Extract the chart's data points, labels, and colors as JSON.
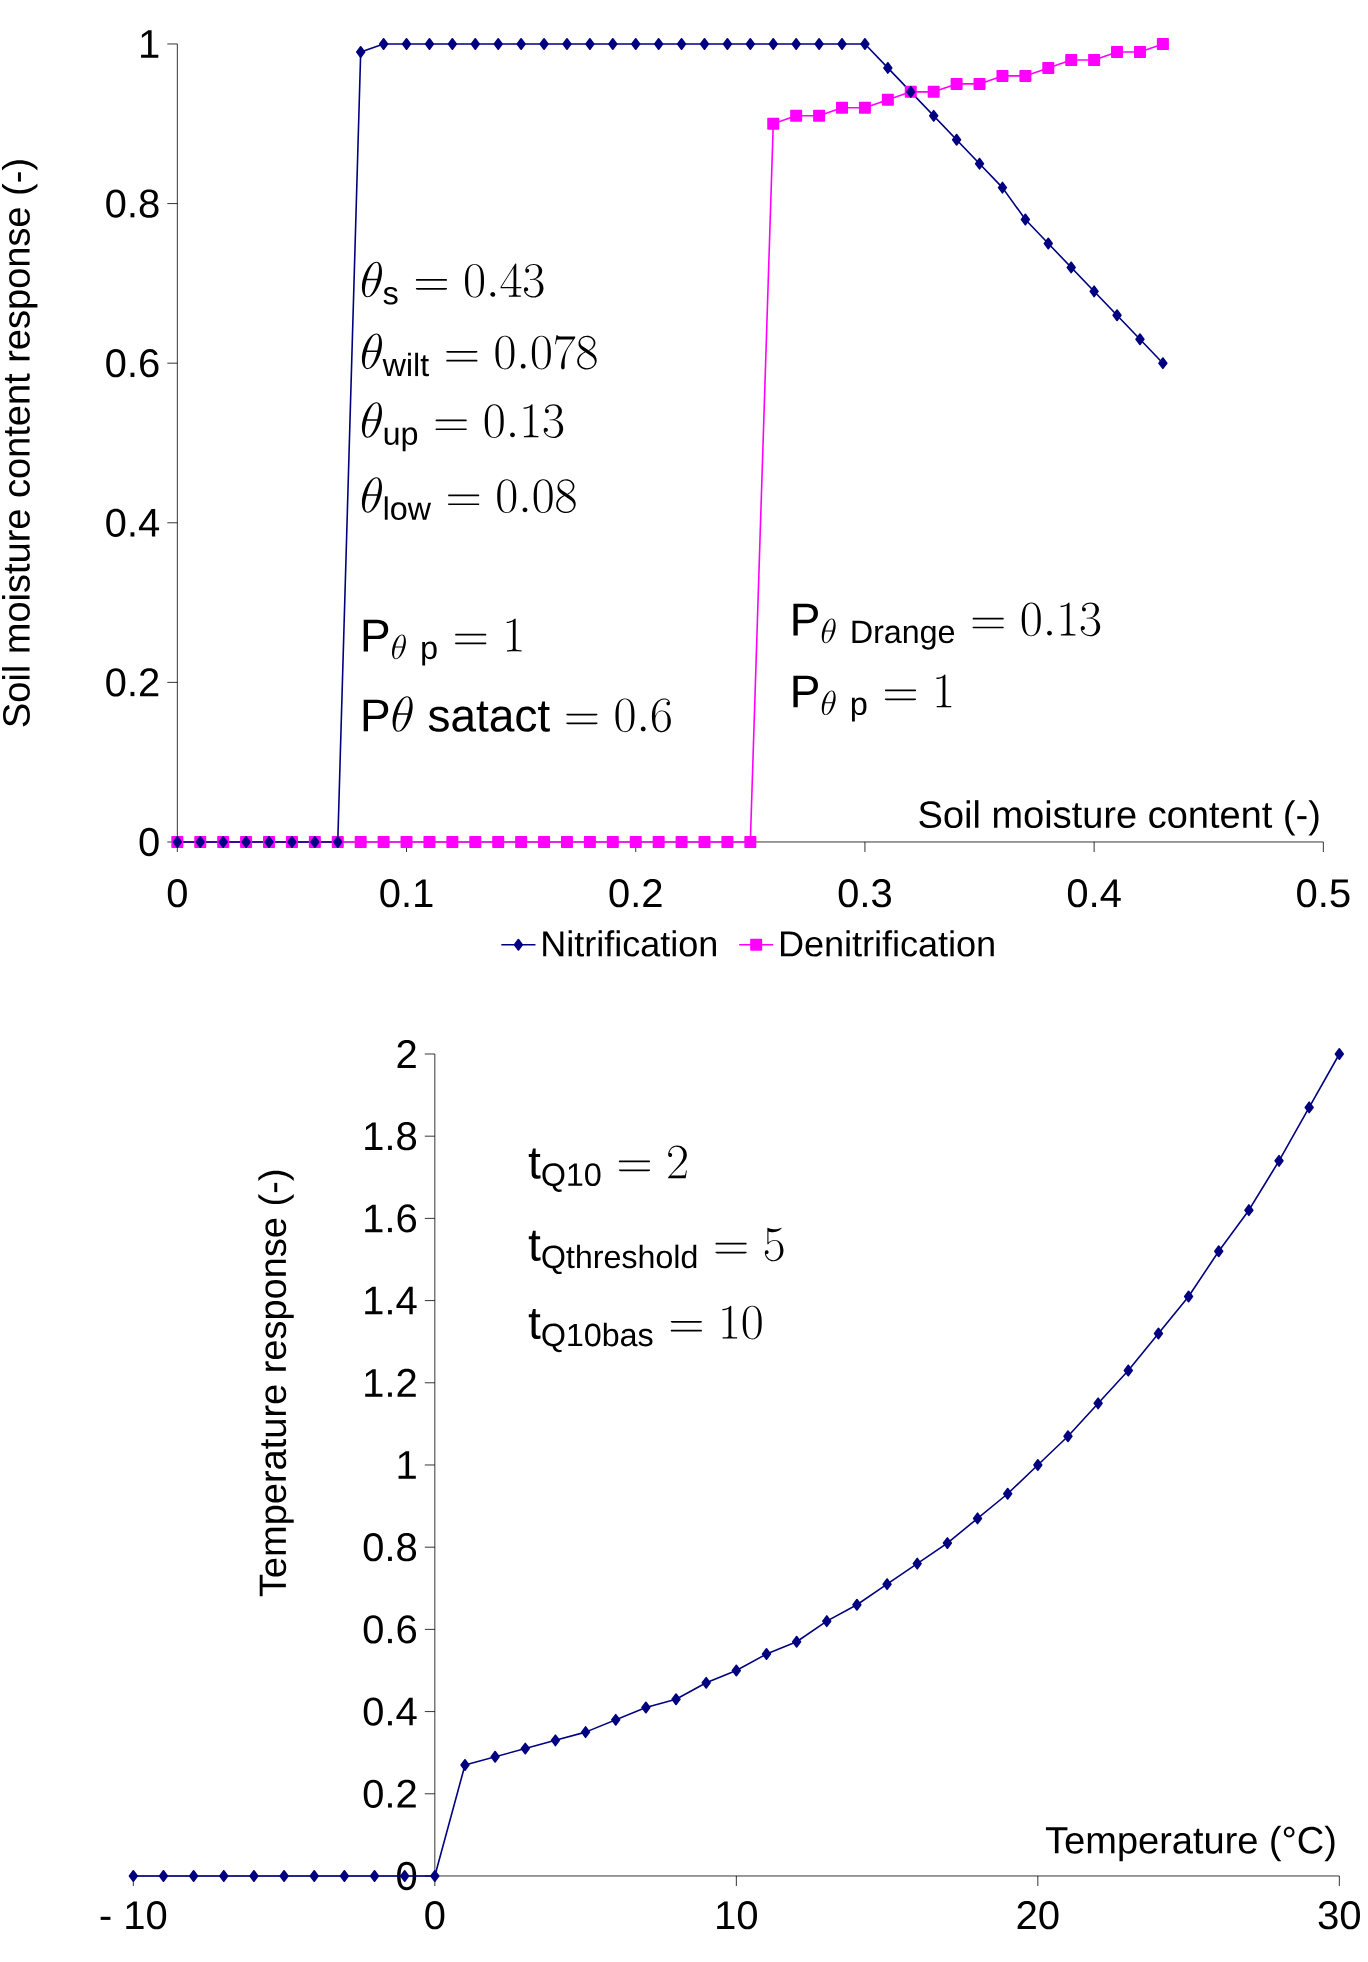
{
  "chart_data": [
    {
      "type": "line",
      "xlabel": "Soil moisture content (-)",
      "ylabel": "Soil moisture content response (-)",
      "x": [
        0,
        0.01,
        0.02,
        0.03,
        0.04,
        0.05,
        0.06,
        0.07,
        0.08,
        0.09,
        0.1,
        0.11,
        0.12,
        0.13,
        0.14,
        0.15,
        0.16,
        0.17,
        0.18,
        0.19,
        0.2,
        0.21,
        0.22,
        0.23,
        0.24,
        0.25,
        0.26,
        0.27,
        0.28,
        0.29,
        0.3,
        0.31,
        0.32,
        0.33,
        0.34,
        0.35,
        0.36,
        0.37,
        0.38,
        0.39,
        0.4,
        0.41,
        0.42,
        0.43
      ],
      "series": [
        {
          "name": "Nitrification",
          "color": "#000080",
          "marker": "diamond",
          "values": [
            0,
            0,
            0,
            0,
            0,
            0,
            0,
            0,
            0.99,
            1,
            1,
            1,
            1,
            1,
            1,
            1,
            1,
            1,
            1,
            1,
            1,
            1,
            1,
            1,
            1,
            1,
            1,
            1,
            1,
            1,
            1,
            0.97,
            0.94,
            0.91,
            0.88,
            0.85,
            0.82,
            0.78,
            0.75,
            0.72,
            0.69,
            0.66,
            0.63,
            0.6
          ]
        },
        {
          "name": "Denitrification",
          "color": "#ff00ff",
          "marker": "square",
          "values": [
            0,
            0,
            0,
            0,
            0,
            0,
            0,
            0,
            0,
            0,
            0,
            0,
            0,
            0,
            0,
            0,
            0,
            0,
            0,
            0,
            0,
            0,
            0,
            0,
            0,
            0,
            0.9,
            0.91,
            0.91,
            0.92,
            0.92,
            0.93,
            0.94,
            0.94,
            0.95,
            0.95,
            0.96,
            0.96,
            0.97,
            0.98,
            0.98,
            0.99,
            0.99,
            1
          ]
        }
      ],
      "xlim": [
        0,
        0.5
      ],
      "xticks": [
        0,
        0.1,
        0.2,
        0.3,
        0.4,
        0.5
      ],
      "ylim": [
        0,
        1
      ],
      "yticks": [
        0,
        0.2,
        0.4,
        0.6,
        0.8,
        1
      ],
      "legend": "bottom",
      "grid": false,
      "annotations": [
        "\\theta_{\\mathrm{s}} = 0.43",
        "\\theta_{\\mathrm{wilt}} = 0.078",
        "\\theta_{\\mathrm{up}} = 0.13",
        "\\theta_{\\mathrm{low}} = 0.08",
        "\\mathrm{P}_{\\theta\\ \\mathrm{p}} = 1",
        "\\mathrm{P}\\theta\\ \\mathrm{satact} = 0.6",
        "\\mathrm{P}_{\\theta\\ \\mathrm{Drange}} = 0.13",
        "\\mathrm{P}_{\\theta\\ \\mathrm{p}} = 1"
      ]
    },
    {
      "type": "line",
      "xlabel": "Temperature (°C)",
      "ylabel": "Temperature response (-)",
      "x": [
        -10,
        -9,
        -8,
        -7,
        -6,
        -5,
        -4,
        -3,
        -2,
        -1,
        0,
        1,
        2,
        3,
        4,
        5,
        6,
        7,
        8,
        9,
        10,
        11,
        12,
        13,
        14,
        15,
        16,
        17,
        18,
        19,
        20,
        21,
        22,
        23,
        24,
        25,
        26,
        27,
        28,
        29,
        30
      ],
      "series": [
        {
          "color": "#000080",
          "marker": "diamond",
          "values": [
            0,
            0,
            0,
            0,
            0,
            0,
            0,
            0,
            0,
            0,
            0,
            0.27,
            0.29,
            0.31,
            0.33,
            0.35,
            0.38,
            0.41,
            0.43,
            0.47,
            0.5,
            0.54,
            0.57,
            0.62,
            0.66,
            0.71,
            0.76,
            0.81,
            0.87,
            0.93,
            1,
            1.07,
            1.15,
            1.23,
            1.32,
            1.41,
            1.52,
            1.62,
            1.74,
            1.87,
            2
          ]
        }
      ],
      "xlim": [
        -10,
        30
      ],
      "xticks": [
        {
          "value": -10,
          "label": "- 10"
        },
        0,
        10,
        20,
        30
      ],
      "ylim": [
        0,
        2
      ],
      "yticks": [
        0,
        0.2,
        0.4,
        0.6,
        0.8,
        1,
        1.2,
        1.4,
        1.6,
        1.8,
        2
      ],
      "grid": false,
      "annotations": [
        "\\mathrm{t}_{\\mathrm{Q10}} = 2",
        "\\mathrm{t}_{\\mathrm{Qthreshold}} = 5",
        "\\mathrm{t}_{\\mathrm{Q10bas}} = 10"
      ]
    }
  ]
}
